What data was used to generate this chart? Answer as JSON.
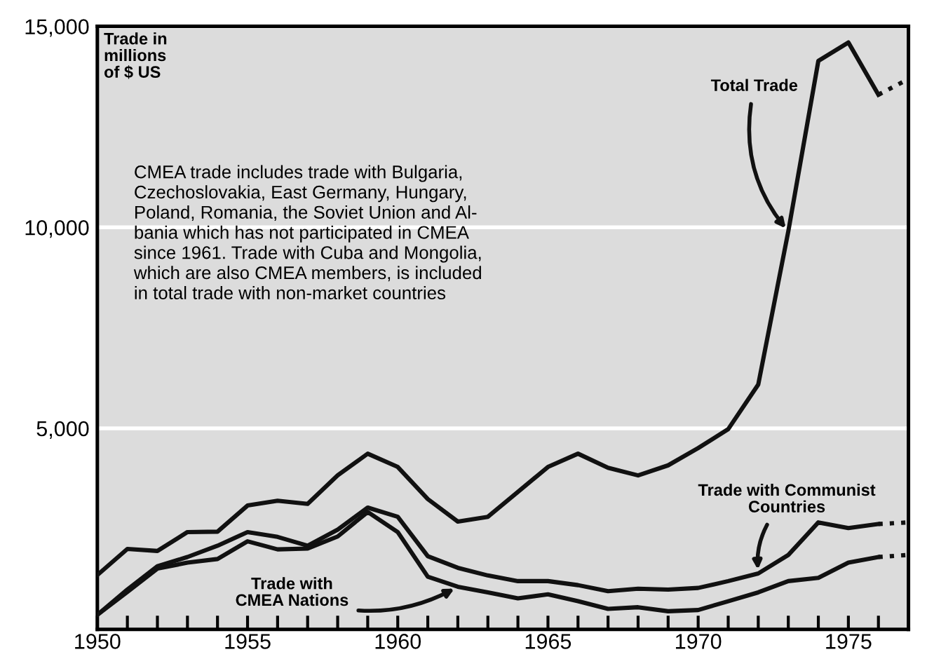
{
  "chart_data": {
    "type": "line",
    "ylabel": "Trade in\nmillions\nof $ US",
    "x": [
      1950,
      1951,
      1952,
      1953,
      1954,
      1955,
      1956,
      1957,
      1958,
      1959,
      1960,
      1961,
      1962,
      1963,
      1964,
      1965,
      1966,
      1967,
      1968,
      1969,
      1970,
      1971,
      1972,
      1973,
      1974,
      1975,
      1976,
      1977
    ],
    "series": [
      {
        "name": "Total Trade",
        "color": "#111111",
        "values": [
          1350,
          2000,
          1950,
          2420,
          2430,
          3080,
          3200,
          3120,
          3830,
          4370,
          4040,
          3240,
          2680,
          2800,
          3420,
          4040,
          4370,
          4020,
          3830,
          4080,
          4510,
          4980,
          6090,
          9900,
          14140,
          14600,
          13300,
          null
        ]
      },
      {
        "name": "Trade with Communist\nCountries",
        "color": "#111111",
        "values": [
          360,
          990,
          1570,
          1800,
          2080,
          2420,
          2300,
          2080,
          2480,
          3030,
          2800,
          1820,
          1530,
          1340,
          1200,
          1200,
          1100,
          950,
          1010,
          990,
          1030,
          1200,
          1390,
          1850,
          2660,
          2520,
          2620,
          null
        ]
      },
      {
        "name": "Trade with\nCMEA Nations",
        "color": "#111111",
        "values": [
          360,
          930,
          1510,
          1660,
          1750,
          2190,
          1990,
          2010,
          2310,
          2920,
          2420,
          1310,
          1060,
          920,
          770,
          870,
          700,
          510,
          550,
          450,
          480,
          700,
          920,
          1200,
          1280,
          1660,
          1800,
          null
        ]
      },
      {
        "color": "#111111",
        "line_style": "dotted",
        "values": [
          null,
          null,
          null,
          null,
          null,
          null,
          null,
          null,
          null,
          null,
          null,
          null,
          null,
          null,
          null,
          null,
          null,
          null,
          null,
          null,
          null,
          null,
          null,
          null,
          null,
          null,
          13300,
          13690
        ]
      },
      {
        "color": "#111111",
        "line_style": "dotted",
        "values": [
          null,
          null,
          null,
          null,
          null,
          null,
          null,
          null,
          null,
          null,
          null,
          null,
          null,
          null,
          null,
          null,
          null,
          null,
          null,
          null,
          null,
          null,
          null,
          null,
          null,
          null,
          2620,
          2660
        ]
      },
      {
        "color": "#111111",
        "line_style": "dotted",
        "values": [
          null,
          null,
          null,
          null,
          null,
          null,
          null,
          null,
          null,
          null,
          null,
          null,
          null,
          null,
          null,
          null,
          null,
          null,
          null,
          null,
          null,
          null,
          null,
          null,
          null,
          null,
          1800,
          1850
        ]
      }
    ],
    "line_style": "solid",
    "marker": "none",
    "xlim": [
      1950,
      1977
    ],
    "ylim": [
      0,
      15000
    ],
    "xticks": [
      1950,
      {
        "value": 1951,
        "label": null
      },
      {
        "value": 1952,
        "label": null
      },
      {
        "value": 1953,
        "label": null
      },
      {
        "value": 1954,
        "label": null
      },
      1955,
      {
        "value": 1956,
        "label": null
      },
      {
        "value": 1957,
        "label": null
      },
      {
        "value": 1958,
        "label": null
      },
      {
        "value": 1959,
        "label": null
      },
      1960,
      {
        "value": 1961,
        "label": null
      },
      {
        "value": 1962,
        "label": null
      },
      {
        "value": 1963,
        "label": null
      },
      {
        "value": 1964,
        "label": null
      },
      1965,
      {
        "value": 1966,
        "label": null
      },
      {
        "value": 1967,
        "label": null
      },
      {
        "value": 1968,
        "label": null
      },
      {
        "value": 1969,
        "label": null
      },
      1970,
      {
        "value": 1971,
        "label": null
      },
      {
        "value": 1972,
        "label": null
      },
      {
        "value": 1973,
        "label": null
      },
      {
        "value": 1974,
        "label": null
      },
      1975,
      {
        "value": 1976,
        "label": null
      }
    ],
    "yticks": [
      {
        "value": 5000,
        "label": "5,000"
      },
      {
        "value": 10000,
        "label": "10,000"
      },
      {
        "value": 15000,
        "label": "15,000"
      }
    ],
    "grid": "y",
    "legend": false,
    "annotations": [
      "CMEA trade includes trade with Bulgaria,\nCzechoslovakia, East Germany, Hungary,\nPoland, Romania, the Soviet Union and Al-\nbania which has not participated in CMEA\nsince 1961. Trade with Cuba and Mongolia,\nwhich are also CMEA members, is included\nin total trade with non-market countries"
    ]
  }
}
